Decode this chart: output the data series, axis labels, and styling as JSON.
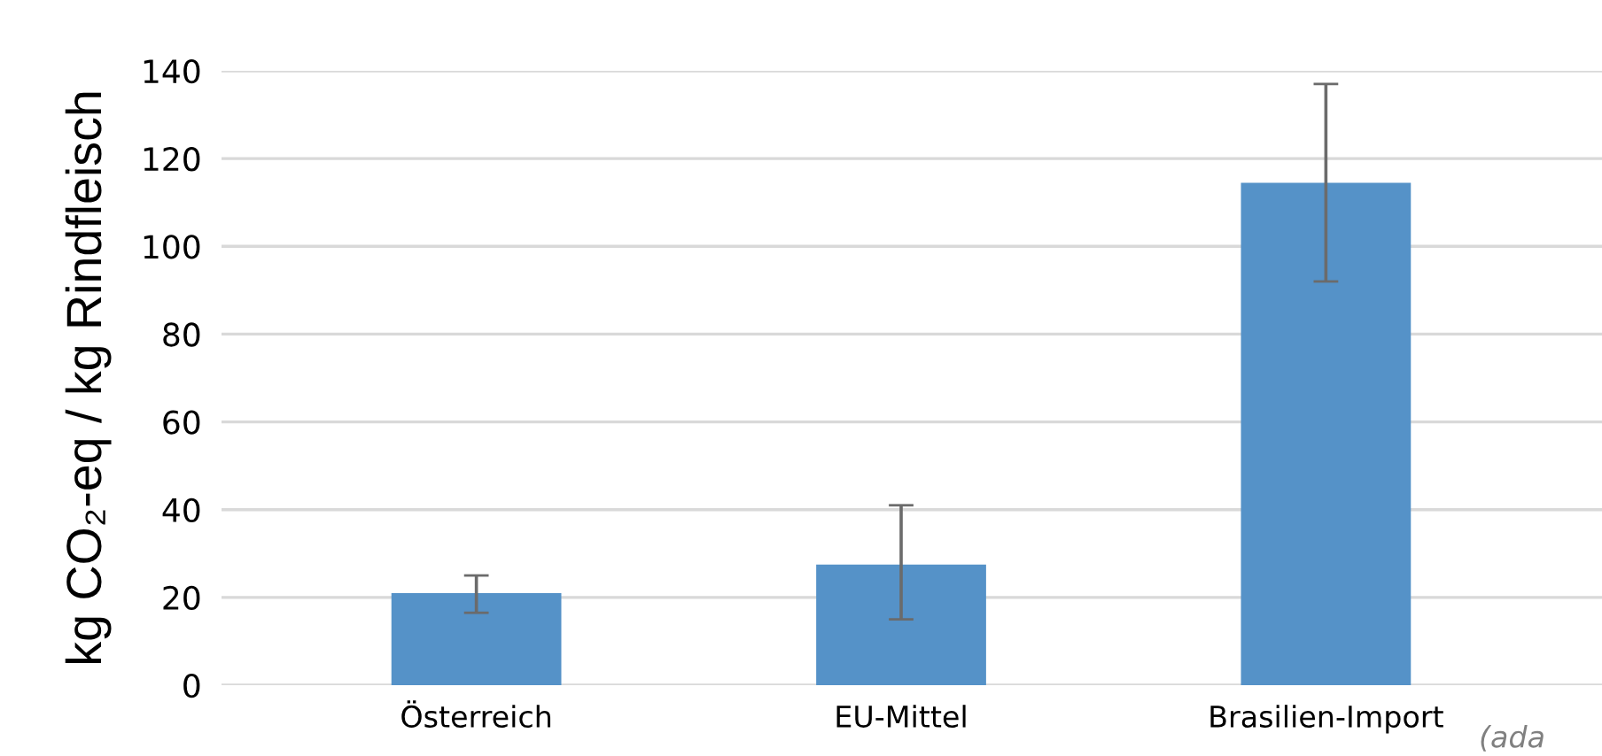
{
  "chart_data": {
    "type": "bar",
    "ylabel": "kg CO₂-eq / kg Rindfleisch",
    "categories": [
      "Österreich",
      "EU-Mittel",
      "Brasilien-Import"
    ],
    "values": [
      21,
      27.5,
      114.5
    ],
    "errors": [
      [
        16.5,
        25
      ],
      [
        15,
        41
      ],
      [
        92,
        137
      ]
    ],
    "color": "#5592c8",
    "ylim": [
      0,
      140
    ],
    "yticks": [
      0,
      20,
      40,
      60,
      80,
      100,
      120,
      140
    ],
    "grid": "y",
    "annotations": [
      "(ada"
    ]
  }
}
